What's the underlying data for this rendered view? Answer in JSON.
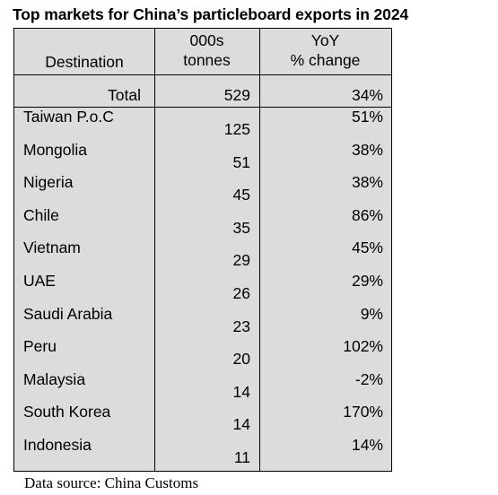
{
  "title": "Top markets for China’s particleboard exports in 2024",
  "columns": {
    "destination": "Destination",
    "tonnes_line1": "000s",
    "tonnes_line2": "tonnes",
    "yoy_line1": "YoY",
    "yoy_line2": "% change"
  },
  "total": {
    "label": "Total",
    "tonnes": "529",
    "yoy": "34%"
  },
  "rows": [
    {
      "destination": "Taiwan P.o.C",
      "tonnes": "125",
      "yoy": "51%"
    },
    {
      "destination": "Mongolia",
      "tonnes": "51",
      "yoy": "38%"
    },
    {
      "destination": "Nigeria",
      "tonnes": "45",
      "yoy": "38%"
    },
    {
      "destination": "Chile",
      "tonnes": "35",
      "yoy": "86%"
    },
    {
      "destination": "Vietnam",
      "tonnes": "29",
      "yoy": "45%"
    },
    {
      "destination": "UAE",
      "tonnes": "26",
      "yoy": "29%"
    },
    {
      "destination": "Saudi Arabia",
      "tonnes": "23",
      "yoy": "9%"
    },
    {
      "destination": "Peru",
      "tonnes": "20",
      "yoy": "102%"
    },
    {
      "destination": "Malaysia",
      "tonnes": "14",
      "yoy": "-2%"
    },
    {
      "destination": "South Korea",
      "tonnes": "14",
      "yoy": "170%"
    },
    {
      "destination": "Indonesia",
      "tonnes": "11",
      "yoy": "14%"
    }
  ],
  "source": "Data source: China Customs"
}
